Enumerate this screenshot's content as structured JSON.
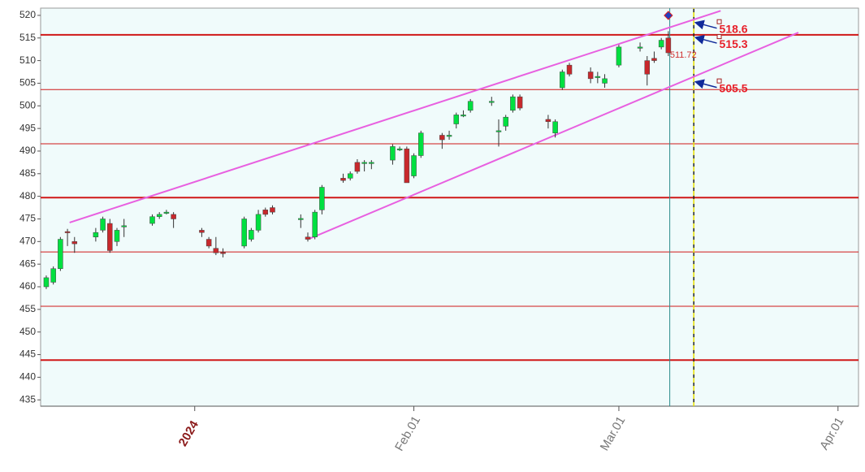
{
  "chart_data": {
    "type": "candlestick",
    "x": [
      -21,
      -20,
      -19,
      -18,
      -17,
      -14,
      -13,
      -12,
      -11,
      -10,
      -6,
      -5,
      -4,
      -3,
      1,
      2,
      3,
      4,
      7,
      8,
      9,
      10,
      11,
      15,
      16,
      17,
      18,
      21,
      22,
      23,
      24,
      25,
      28,
      29,
      30,
      31,
      32,
      35,
      36,
      37,
      38,
      39,
      42,
      43,
      44,
      45,
      46,
      50,
      51,
      52,
      53,
      56,
      57,
      58,
      60,
      63,
      64,
      65,
      66,
      67
    ],
    "open": [
      460,
      461,
      464,
      472.2,
      470,
      471,
      472.5,
      474,
      470,
      473.4,
      474,
      475.5,
      476.4,
      476,
      472.5,
      470.5,
      468.5,
      467.6,
      469,
      470.5,
      472.5,
      477,
      477.5,
      475,
      471,
      471,
      477,
      484,
      484,
      487.5,
      487.4,
      487.4,
      488,
      490.4,
      490.5,
      484.5,
      489,
      493.5,
      493.4,
      496,
      497.9,
      499,
      500.9,
      494.4,
      495.5,
      499,
      502,
      497,
      494,
      504,
      509,
      507.5,
      506.4,
      505,
      509,
      512.9,
      510,
      510.5,
      513,
      515
    ],
    "high": [
      462.5,
      464.5,
      471,
      472.8,
      471,
      473,
      475.5,
      475,
      473,
      475,
      476,
      476.5,
      477,
      476.5,
      473,
      471,
      471,
      468.5,
      475.5,
      473,
      477,
      477.5,
      478,
      476,
      472,
      477,
      482.5,
      485,
      485.5,
      488.2,
      488,
      488,
      491.5,
      491,
      491,
      489.5,
      494.5,
      494,
      494.5,
      498.5,
      499,
      501.5,
      502,
      497,
      498,
      502.5,
      502.5,
      498,
      497,
      508,
      509.5,
      508.5,
      507.5,
      507,
      513.5,
      514,
      511,
      512,
      515,
      516.5
    ],
    "low": [
      459.5,
      460.5,
      463.5,
      469,
      467.5,
      470,
      472,
      467.5,
      469,
      471,
      473.5,
      475,
      476,
      473,
      471,
      468.5,
      467,
      466.5,
      468.5,
      470,
      472,
      475.5,
      476,
      473,
      470,
      470.5,
      476,
      483,
      483.5,
      485,
      485.5,
      486,
      487,
      490,
      483,
      484,
      488.5,
      490.5,
      492.5,
      495,
      497.5,
      498.5,
      500,
      491,
      494.5,
      498.5,
      499,
      495,
      493,
      503.5,
      506.5,
      505,
      505,
      504,
      508.5,
      512,
      504.5,
      509.5,
      512.5,
      511
    ],
    "close": [
      462,
      464,
      470.5,
      472,
      469.5,
      472,
      475,
      468,
      472.5,
      473.5,
      475.5,
      476,
      476.5,
      475,
      472,
      469,
      467.5,
      467.5,
      475,
      472.5,
      476,
      476,
      476.5,
      475.1,
      470.5,
      476.5,
      482,
      483.5,
      485,
      485.5,
      487.5,
      487.5,
      491,
      490.5,
      483,
      489,
      494,
      492.5,
      493.5,
      498,
      498,
      501,
      501,
      494.5,
      497.5,
      502,
      499.5,
      496.5,
      496.5,
      507.5,
      507,
      506,
      506.5,
      506,
      513,
      513,
      507,
      510,
      514.5,
      511.72
    ],
    "last_close_label": "511.72",
    "up_color": "#00e040",
    "down_color": "#c8282c",
    "ylim": [
      433.6,
      521.6
    ],
    "yticks": [
      435,
      440,
      445,
      450,
      455,
      460,
      465,
      470,
      475,
      480,
      485,
      490,
      495,
      500,
      505,
      510,
      515,
      520
    ],
    "xlim": [
      -21.8,
      93.9
    ],
    "xticks": [
      {
        "value": 0,
        "label": "2024"
      },
      {
        "value": 31,
        "label": "Feb.01"
      },
      {
        "value": 60,
        "label": "Mar.01"
      },
      {
        "value": 91,
        "label": "Apr.01"
      }
    ],
    "hlines": [
      {
        "value": 515.7,
        "thick": true
      },
      {
        "value": 503.6,
        "thick": false
      },
      {
        "value": 491.6,
        "thick": false
      },
      {
        "value": 479.7,
        "thick": true
      },
      {
        "value": 467.7,
        "thick": false
      },
      {
        "value": 455.7,
        "thick": false
      },
      {
        "value": 443.8,
        "thick": true
      }
    ],
    "hline_color": "#d01818",
    "trendlines": [
      {
        "x": [
          -17.7,
          74.4
        ],
        "values": [
          474.2,
          521
        ]
      },
      {
        "x": [
          16.2,
          85.4
        ],
        "values": [
          470.6,
          516.2
        ]
      }
    ],
    "trend_color": "#e860e0",
    "vlines": [
      {
        "x": 67.2,
        "dashed": false,
        "color": "#2a8c8c"
      },
      {
        "x": 70.6,
        "dashed": true,
        "color": "#222222"
      }
    ],
    "annotations": [
      {
        "label": "518.6",
        "value": 518.6,
        "x": 74.2
      },
      {
        "label": "515.3",
        "value": 515.3,
        "x": 74.2
      },
      {
        "label": "505.5",
        "value": 505.5,
        "x": 74.2
      }
    ],
    "arrow_color": "#102a9a",
    "background": "#f0fbfb"
  }
}
